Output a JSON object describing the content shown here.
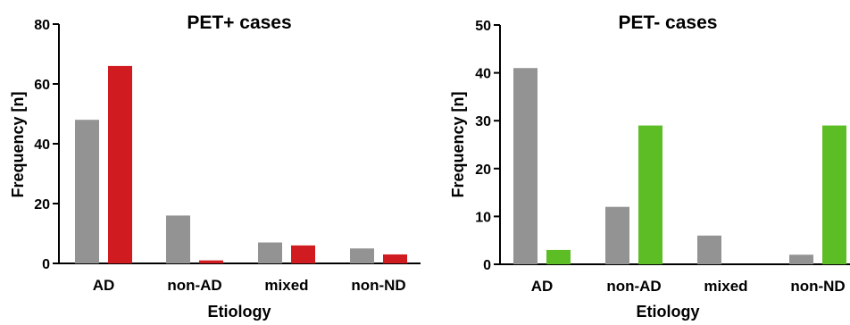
{
  "chart_data": [
    {
      "type": "bar",
      "title": "PET+ cases",
      "xlabel": "Etiology",
      "ylabel": "Frequency [n]",
      "ylim": [
        0,
        80
      ],
      "yticks": [
        "0",
        "20",
        "40",
        "60",
        "80"
      ],
      "categories": [
        "AD",
        "non-AD",
        "mixed",
        "non-ND"
      ],
      "colors": [
        "#939393",
        "#d01c21"
      ],
      "series": [
        {
          "values": [
            48,
            16,
            7,
            5
          ]
        },
        {
          "values": [
            66,
            1,
            6,
            3
          ]
        }
      ]
    },
    {
      "type": "bar",
      "title": "PET- cases",
      "xlabel": "Etiology",
      "ylabel": "Frequency [n]",
      "ylim": [
        0,
        50
      ],
      "yticks": [
        "0",
        "10",
        "20",
        "30",
        "40",
        "50"
      ],
      "categories": [
        "AD",
        "non-AD",
        "mixed",
        "non-ND"
      ],
      "colors": [
        "#939393",
        "#5cbd24"
      ],
      "series": [
        {
          "values": [
            41,
            12,
            6,
            2
          ]
        },
        {
          "values": [
            3,
            29,
            0,
            29
          ]
        }
      ]
    }
  ]
}
